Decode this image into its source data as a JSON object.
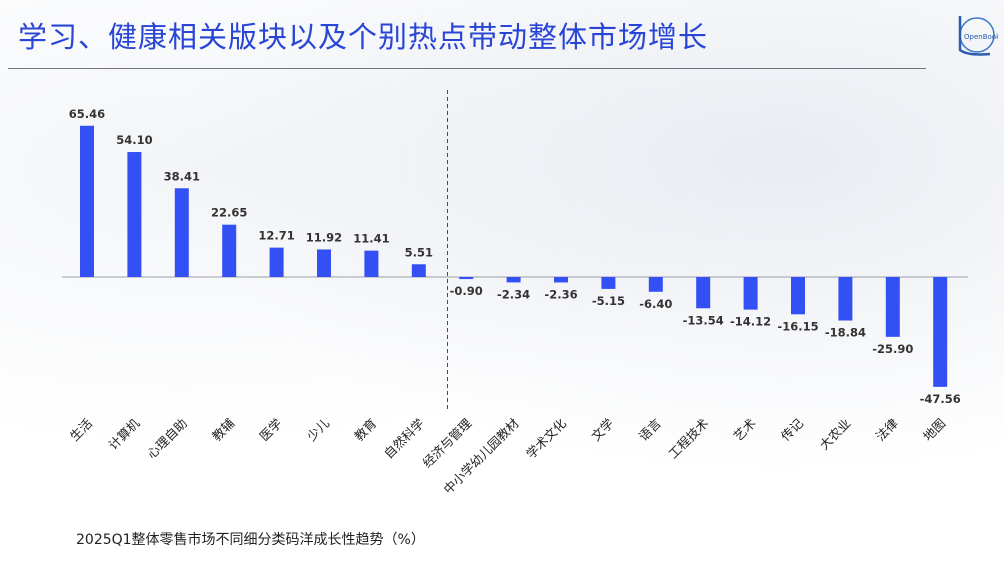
{
  "page": {
    "title": "学习、健康相关版块以及个别热点带动整体市场增长",
    "caption": "2025Q1整体零售市场不同细分类码洋成长性趋势（%）",
    "logo_text": "OpenBook"
  },
  "colors": {
    "bar": "#3350f5",
    "title": "#2845d6",
    "axis": "#9aa0aa"
  },
  "chart_data": {
    "type": "bar",
    "categories": [
      "生活",
      "计算机",
      "心理自助",
      "教辅",
      "医学",
      "少儿",
      "教育",
      "自然科学",
      "经济与管理",
      "中小学幼儿园教材",
      "学术文化",
      "文学",
      "语言",
      "工程技术",
      "艺术",
      "传记",
      "大农业",
      "法律",
      "地图"
    ],
    "values": [
      65.46,
      54.1,
      38.41,
      22.65,
      12.71,
      11.92,
      11.41,
      5.51,
      -0.9,
      -2.34,
      -2.36,
      -5.15,
      -6.4,
      -13.54,
      -14.12,
      -16.15,
      -18.84,
      -25.9,
      -47.56
    ],
    "value_labels": [
      "65.46",
      "54.10",
      "38.41",
      "22.65",
      "12.71",
      "11.92",
      "11.41",
      "5.51",
      "-0.90",
      "-2.34",
      "-2.36",
      "-5.15",
      "-6.40",
      "-13.54",
      "-14.12",
      "-16.15",
      "-18.84",
      "-25.90",
      "-47.56"
    ],
    "title": "",
    "xlabel": "",
    "ylabel": "",
    "ylim": [
      -50,
      70
    ],
    "grid": false,
    "legend": "none",
    "divider_after_category": "自然科学"
  }
}
